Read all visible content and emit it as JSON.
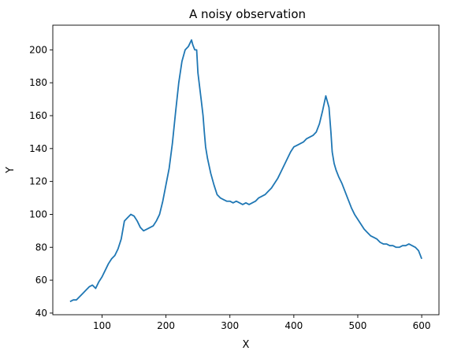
{
  "chart_data": {
    "type": "line",
    "title": "A noisy observation",
    "xlabel": "X",
    "ylabel": "Y",
    "xlim": [
      23,
      627
    ],
    "ylim": [
      39,
      215
    ],
    "xticks": [
      100,
      200,
      300,
      400,
      500,
      600
    ],
    "yticks": [
      40,
      60,
      80,
      100,
      120,
      140,
      160,
      180,
      200
    ],
    "grid": false,
    "color": "#1f77b4",
    "series": [
      {
        "x": [
          50,
          55,
          60,
          65,
          70,
          75,
          80,
          85,
          90,
          95,
          100,
          105,
          110,
          115,
          120,
          125,
          130,
          135,
          140,
          145,
          150,
          155,
          160,
          165,
          170,
          175,
          180,
          185,
          190,
          195,
          200,
          205,
          210,
          215,
          220,
          225,
          230,
          235,
          240,
          242,
          245,
          248,
          250,
          255,
          258,
          260,
          262,
          265,
          270,
          275,
          280,
          285,
          290,
          295,
          300,
          305,
          310,
          315,
          320,
          325,
          330,
          335,
          340,
          345,
          350,
          355,
          360,
          365,
          370,
          375,
          380,
          385,
          390,
          395,
          400,
          405,
          410,
          415,
          420,
          425,
          430,
          435,
          440,
          445,
          450,
          455,
          458,
          460,
          463,
          466,
          470,
          475,
          480,
          485,
          490,
          495,
          500,
          505,
          510,
          515,
          520,
          525,
          530,
          535,
          540,
          545,
          550,
          555,
          560,
          565,
          570,
          575,
          580,
          585,
          590,
          595,
          600
        ],
        "y": [
          47,
          48,
          48,
          50,
          52,
          54,
          56,
          57,
          55,
          59,
          62,
          66,
          70,
          73,
          75,
          79,
          85,
          96,
          98,
          100,
          99,
          96,
          92,
          90,
          91,
          92,
          93,
          96,
          100,
          108,
          118,
          128,
          143,
          162,
          180,
          193,
          200,
          202,
          206,
          203,
          200,
          200,
          186,
          170,
          160,
          150,
          141,
          134,
          125,
          118,
          112,
          110,
          109,
          108,
          108,
          107,
          108,
          107,
          106,
          107,
          106,
          107,
          108,
          110,
          111,
          112,
          114,
          116,
          119,
          122,
          126,
          130,
          134,
          138,
          141,
          142,
          143,
          144,
          146,
          147,
          148,
          150,
          155,
          163,
          172,
          165,
          150,
          138,
          131,
          127,
          123,
          119,
          114,
          109,
          104,
          100,
          97,
          94,
          91,
          89,
          87,
          86,
          85,
          83,
          82,
          82,
          81,
          81,
          80,
          80,
          81,
          81,
          82,
          81,
          80,
          78,
          73
        ]
      }
    ]
  }
}
